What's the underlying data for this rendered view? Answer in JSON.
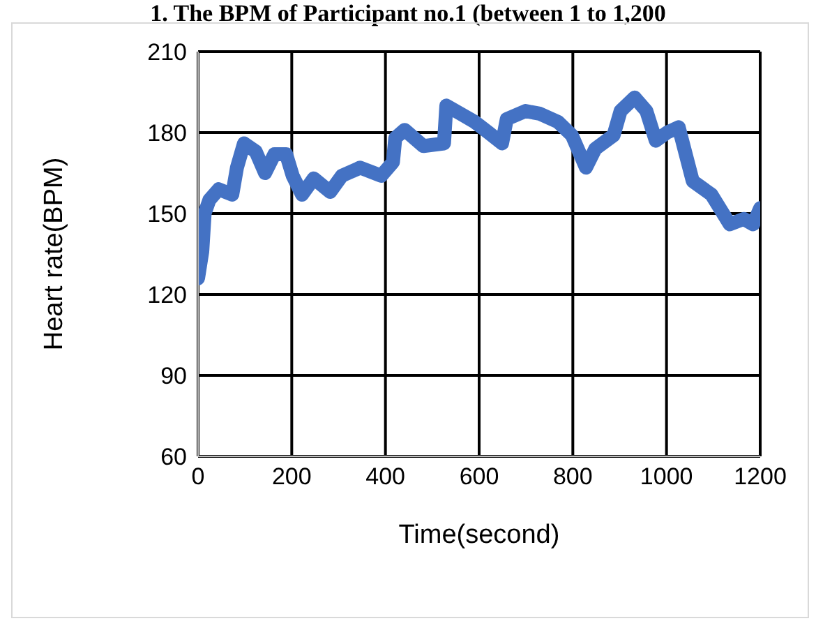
{
  "chart_data": {
    "type": "line",
    "title": "1. The BPM of Participant no.1 (between 1 to 1,200",
    "xlabel": "Time(second)",
    "ylabel": "Heart rate(BPM)",
    "x": [
      0,
      9,
      14,
      24,
      44,
      73,
      83,
      98,
      123,
      143,
      163,
      188,
      202,
      222,
      247,
      282,
      307,
      346,
      391,
      416,
      421,
      441,
      481,
      525,
      530,
      560,
      590,
      620,
      649,
      659,
      699,
      729,
      768,
      798,
      828,
      848,
      887,
      902,
      932,
      957,
      977,
      1001,
      1026,
      1041,
      1056,
      1096,
      1135,
      1165,
      1185,
      1200
    ],
    "series": [
      {
        "color": "#4472c4",
        "values": [
          126,
          136,
          150,
          155,
          159,
          157,
          167,
          176,
          173,
          165,
          172,
          172,
          164,
          157,
          163,
          158,
          164,
          167,
          164,
          169,
          178,
          181,
          175,
          176,
          190,
          187,
          184,
          180,
          176,
          185,
          188,
          187,
          184,
          179,
          167,
          174,
          179,
          188,
          193,
          188,
          177,
          180,
          182,
          172,
          162,
          157,
          146,
          148,
          146,
          152
        ]
      }
    ],
    "xlim": [
      0,
      1200
    ],
    "xticks": [
      0,
      200,
      400,
      600,
      800,
      1000,
      1200
    ],
    "ylim": [
      60,
      210
    ],
    "yticks": [
      60,
      90,
      120,
      150,
      180,
      210
    ],
    "grid": true,
    "legend": false,
    "line_style": "solid"
  }
}
